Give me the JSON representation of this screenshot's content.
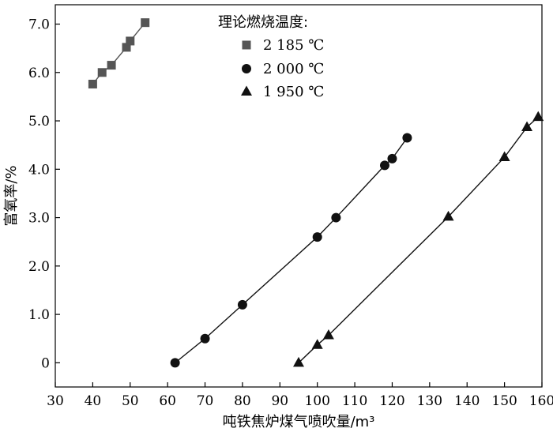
{
  "chart_data": {
    "type": "scatter",
    "xlabel": "吨铁焦炉煤气喷吹量/m³",
    "ylabel": "富氧率/%",
    "xlim": [
      30,
      160
    ],
    "ylim": [
      -0.5,
      7.4
    ],
    "x_ticks": [
      30,
      40,
      50,
      60,
      70,
      80,
      90,
      100,
      110,
      120,
      130,
      140,
      150,
      160
    ],
    "y_ticks": [
      {
        "value": 0,
        "label": "0"
      },
      {
        "value": 1,
        "label": "1.0"
      },
      {
        "value": 2,
        "label": "2.0"
      },
      {
        "value": 3,
        "label": "3.0"
      },
      {
        "value": 4,
        "label": "4.0"
      },
      {
        "value": 5,
        "label": "5.0"
      },
      {
        "value": 6,
        "label": "6.0"
      },
      {
        "value": 7,
        "label": "7.0"
      }
    ],
    "grid": false,
    "legend": {
      "title": "理论燃烧温度:",
      "position": "top-center"
    },
    "series": [
      {
        "name": "2 185 ℃",
        "marker": "square",
        "color": "#555555",
        "x": [
          40,
          42.5,
          45,
          49,
          50,
          54
        ],
        "y": [
          5.76,
          6.0,
          6.15,
          6.52,
          6.65,
          7.03
        ]
      },
      {
        "name": "2 000 ℃",
        "marker": "circle",
        "color": "#111111",
        "x": [
          62,
          70,
          80,
          100,
          105,
          118,
          120,
          124
        ],
        "y": [
          0.0,
          0.5,
          1.2,
          2.6,
          3.0,
          4.08,
          4.22,
          4.65
        ]
      },
      {
        "name": "1 950 ℃",
        "marker": "triangle",
        "color": "#111111",
        "x": [
          95,
          100,
          103,
          135,
          150,
          156,
          159
        ],
        "y": [
          0.0,
          0.37,
          0.57,
          3.02,
          4.25,
          4.87,
          5.08
        ]
      }
    ]
  }
}
